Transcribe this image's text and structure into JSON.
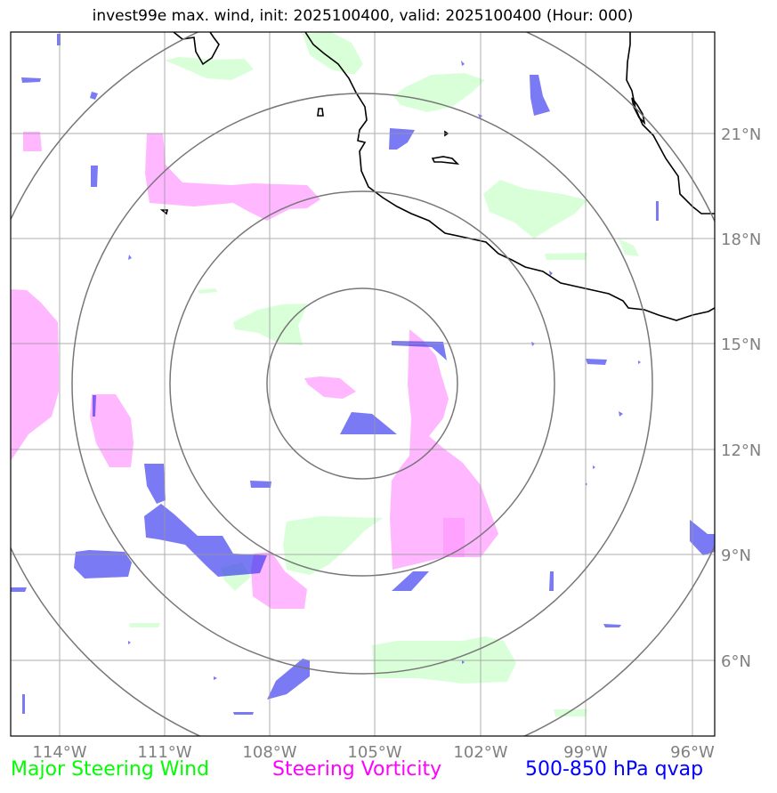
{
  "title": "invest99e max. wind, init: 2025100400, valid: 2025100400 (Hour: 000)",
  "longitude_labels": [
    "114°W",
    "111°W",
    "108°W",
    "105°W",
    "102°W",
    "99°W",
    "96°W"
  ],
  "latitude_labels": [
    "21°N",
    "18°N",
    "15°N",
    "12°N",
    "9°N",
    "6°N"
  ],
  "legend": {
    "wind": "Major Steering Wind",
    "vorticity": "Steering Vorticity",
    "qvap": "500-850 hPa qvap"
  },
  "colors": {
    "wind": "#00ff00",
    "vorticity": "#ff00ff",
    "qvap": "#0000ff",
    "wind_fill": "#ccffcc",
    "vorticity_fill": "#ff88ff",
    "qvap_fill": "#2222ee",
    "grid": "#999999",
    "rings": "#777777",
    "coast": "#000000",
    "tick_text": "#808080"
  }
}
